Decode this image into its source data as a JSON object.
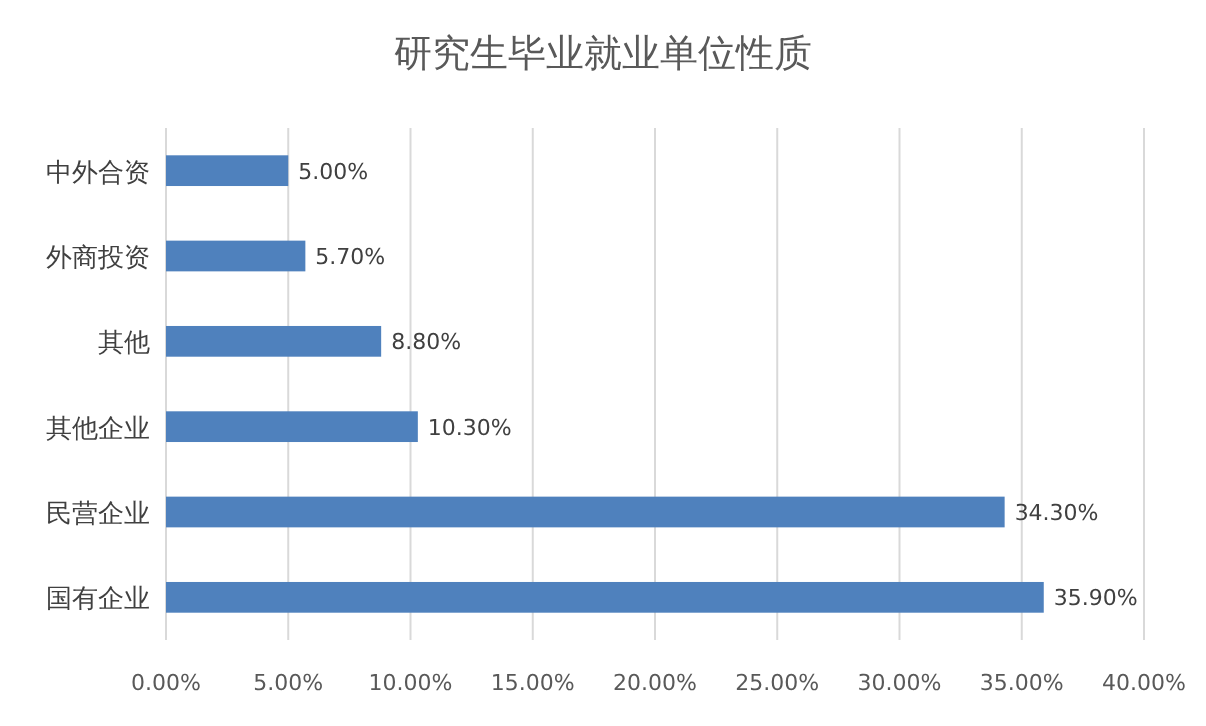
{
  "chart_data": {
    "type": "bar",
    "orientation": "horizontal",
    "title": "研究生毕业就业单位性质",
    "categories": [
      "中外合资",
      "外商投资",
      "其他",
      "其他企业",
      "民营企业",
      "国有企业"
    ],
    "values": [
      5.0,
      5.7,
      8.8,
      10.3,
      34.3,
      35.9
    ],
    "value_labels": [
      "5.00%",
      "5.70%",
      "8.80%",
      "10.30%",
      "34.30%",
      "35.90%"
    ],
    "color": "#4f81bd",
    "xlim": [
      0,
      40
    ],
    "xticks": [
      {
        "value": 0,
        "label": "0.00%"
      },
      {
        "value": 5,
        "label": "5.00%"
      },
      {
        "value": 10,
        "label": "10.00%"
      },
      {
        "value": 15,
        "label": "15.00%"
      },
      {
        "value": 20,
        "label": "20.00%"
      },
      {
        "value": 25,
        "label": "25.00%"
      },
      {
        "value": 30,
        "label": "30.00%"
      },
      {
        "value": 35,
        "label": "35.00%"
      },
      {
        "value": 40,
        "label": "40.00%"
      }
    ],
    "grid": "x"
  }
}
